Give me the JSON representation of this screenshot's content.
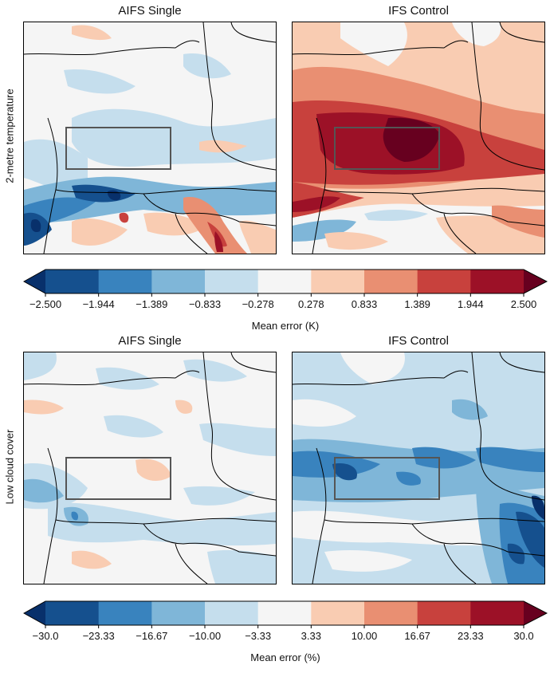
{
  "chart_data": [
    {
      "type": "heatmap",
      "variable": "2-metre temperature",
      "row_label": "2-metre temperature",
      "panels": [
        {
          "title": "AIFS Single",
          "bias": "near-zero, mixed; positive errors in southern Alps / Adriatic, negative over Alps"
        },
        {
          "title": "IFS Control",
          "bias": "strong positive (warm) bias over central region"
        }
      ],
      "colorbar": {
        "label": "Mean error (K)",
        "ticks": [
          "−2.500",
          "−1.944",
          "−1.389",
          "−0.833",
          "−0.278",
          "0.278",
          "0.833",
          "1.389",
          "1.944",
          "2.500"
        ],
        "range": [
          -2.5,
          2.5
        ],
        "extend": "both",
        "colors": [
          "#08306b",
          "#15508e",
          "#3983be",
          "#7fb6d8",
          "#c5deed",
          "#f5f5f5",
          "#f9ccb2",
          "#e98f72",
          "#c8413d",
          "#9c1127",
          "#67001f"
        ]
      }
    },
    {
      "type": "heatmap",
      "variable": "Low cloud cover",
      "row_label": "Low cloud cover",
      "panels": [
        {
          "title": "AIFS Single",
          "bias": "mostly near-zero, light negative patches"
        },
        {
          "title": "IFS Control",
          "bias": "widespread negative bias, strongest in south-east"
        }
      ],
      "colorbar": {
        "label": "Mean error (%)",
        "ticks": [
          "−30.0",
          "−23.33",
          "−16.67",
          "−10.00",
          "−3.33",
          "3.33",
          "10.00",
          "16.67",
          "23.33",
          "30.0"
        ],
        "range": [
          -30,
          30
        ],
        "extend": "both",
        "colors": [
          "#08306b",
          "#15508e",
          "#3983be",
          "#7fb6d8",
          "#c5deed",
          "#f5f5f5",
          "#f9ccb2",
          "#e98f72",
          "#c8413d",
          "#9c1127",
          "#67001f"
        ]
      }
    }
  ]
}
